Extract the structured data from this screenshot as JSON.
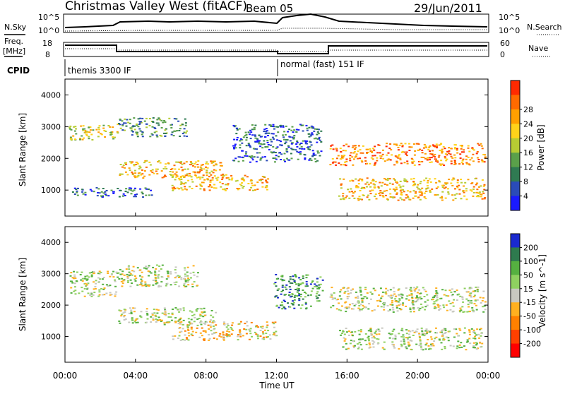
{
  "header": {
    "radar": "Christmas Valley West (fitACF)",
    "beam": "Beam 05",
    "date": "29/Jun/2011"
  },
  "top_panels": {
    "noise_left_label": "N.Sky",
    "noise_right_label": "N.Search",
    "noise_left_ticks": [
      "10^5",
      "10^0"
    ],
    "noise_right_ticks": [
      "10^5",
      "10^0"
    ],
    "freq_label_line1": "Freq.",
    "freq_label_line2": "[MHz]",
    "freq_ticks": [
      "18",
      "8"
    ],
    "nave_label": "Nave",
    "nave_ticks": [
      "60",
      "0"
    ],
    "cpid_label": "CPID",
    "cpid_segments": [
      "themis 3300 IF",
      "normal (fast) 151 IF"
    ]
  },
  "x_axis": {
    "label": "Time UT",
    "ticks": [
      "00:00",
      "04:00",
      "08:00",
      "12:00",
      "16:00",
      "20:00",
      "00:00"
    ]
  },
  "chart_data": [
    {
      "type": "heatmap",
      "title": "Power",
      "ylabel": "Slant Range [km]",
      "xlabel": "",
      "x_range_hours": [
        0,
        24
      ],
      "ylim": [
        180,
        4500
      ],
      "y_ticks": [
        "1000",
        "2000",
        "3000",
        "4000"
      ],
      "colorbar": {
        "label": "Power [dB]",
        "ticks": [
          "4",
          "8",
          "12",
          "16",
          "20",
          "24",
          "28"
        ],
        "colors": [
          "#1a1aff",
          "#2a4bb8",
          "#2f7a52",
          "#5aa04a",
          "#b7cc33",
          "#ffd21a",
          "#ffa000",
          "#ff6a00",
          "#ff2a00"
        ]
      },
      "echo_regions": [
        {
          "x_start": 0.2,
          "x_end": 3.0,
          "range_low": 2600,
          "range_high": 3100,
          "power": 20
        },
        {
          "x_start": 3.0,
          "x_end": 7.0,
          "range_low": 2700,
          "range_high": 3300,
          "power": 12
        },
        {
          "x_start": 3.0,
          "x_end": 9.0,
          "range_low": 1400,
          "range_high": 1950,
          "power": 24
        },
        {
          "x_start": 6.0,
          "x_end": 11.5,
          "range_low": 1000,
          "range_high": 1500,
          "power": 22
        },
        {
          "x_start": 9.5,
          "x_end": 14.5,
          "range_low": 1900,
          "range_high": 3100,
          "power": 8
        },
        {
          "x_start": 15.0,
          "x_end": 23.8,
          "range_low": 1800,
          "range_high": 2500,
          "power": 26
        },
        {
          "x_start": 15.5,
          "x_end": 23.8,
          "range_low": 700,
          "range_high": 1400,
          "power": 22
        },
        {
          "x_start": 0.3,
          "x_end": 5.0,
          "range_low": 800,
          "range_high": 1100,
          "power": 10
        }
      ]
    },
    {
      "type": "heatmap",
      "title": "Velocity",
      "ylabel": "Slant Range [km]",
      "xlabel": "Time UT",
      "x_range_hours": [
        0,
        24
      ],
      "ylim": [
        180,
        4500
      ],
      "y_ticks": [
        "1000",
        "2000",
        "3000",
        "4000"
      ],
      "colorbar": {
        "label": "Velocity [m s^-1]",
        "ticks": [
          "200",
          "100",
          "50",
          "15",
          "-15",
          "-50",
          "-100",
          "-200"
        ],
        "colors": [
          "#1a2ad0",
          "#2e7a4e",
          "#55b040",
          "#8fd060",
          "#c8c8c0",
          "#ffb020",
          "#ff8000",
          "#ff4000",
          "#ff0000"
        ]
      },
      "echo_regions": [
        {
          "x_start": 0.2,
          "x_end": 3.0,
          "range_low": 2300,
          "range_high": 3100,
          "velocity": 0
        },
        {
          "x_start": 3.0,
          "x_end": 7.5,
          "range_low": 2600,
          "range_high": 3300,
          "velocity": 0
        },
        {
          "x_start": 3.0,
          "x_end": 8.5,
          "range_low": 1400,
          "range_high": 1950,
          "velocity": 0
        },
        {
          "x_start": 6.0,
          "x_end": 12.0,
          "range_low": 900,
          "range_high": 1500,
          "velocity": -60
        },
        {
          "x_start": 11.8,
          "x_end": 14.6,
          "range_low": 1900,
          "range_high": 3000,
          "velocity": 50
        },
        {
          "x_start": 15.0,
          "x_end": 23.8,
          "range_low": 1800,
          "range_high": 2600,
          "velocity": 0
        },
        {
          "x_start": 15.5,
          "x_end": 23.8,
          "range_low": 600,
          "range_high": 1300,
          "velocity": 0
        }
      ]
    }
  ]
}
